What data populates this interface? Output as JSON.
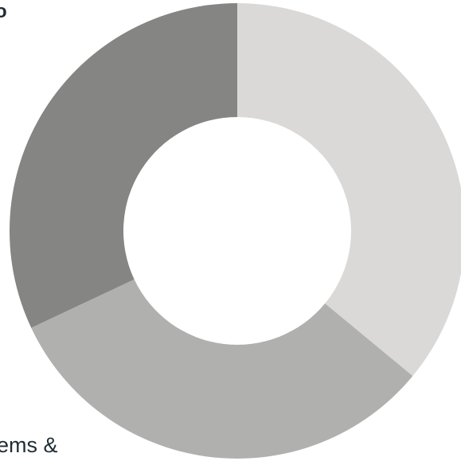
{
  "chart_data": {
    "type": "pie",
    "donut": true,
    "start_angle_deg": 0,
    "direction": "clockwise",
    "slices": [
      {
        "value": 36,
        "color": "#dad9d8"
      },
      {
        "value": 32,
        "color": "#b0b0af"
      },
      {
        "value": 32,
        "color": "#858584"
      }
    ]
  },
  "clipped_labels": {
    "top_left": "o",
    "bottom_left": "ems &"
  }
}
